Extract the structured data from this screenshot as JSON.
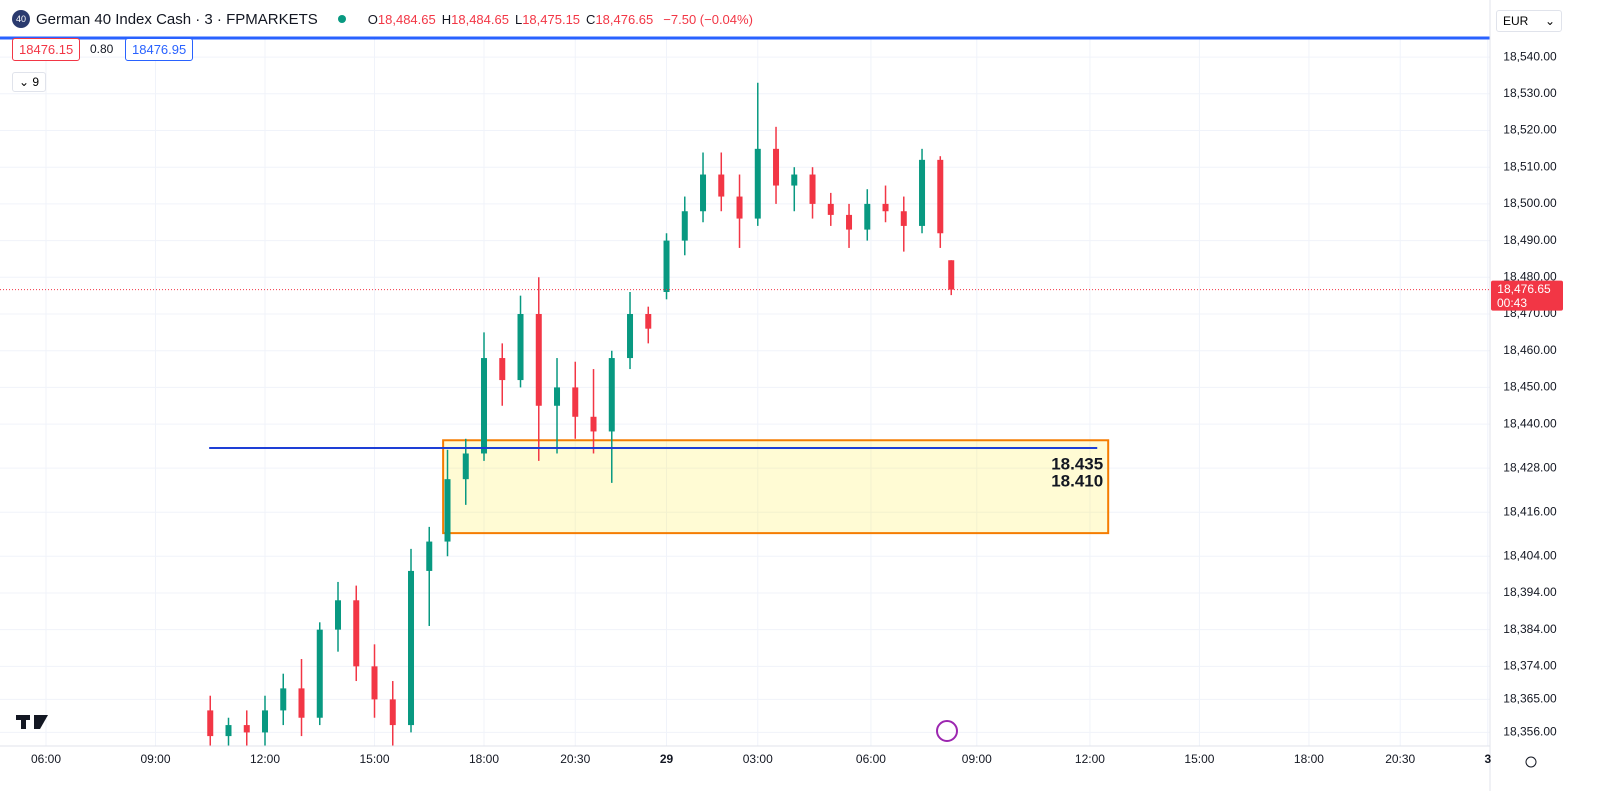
{
  "header": {
    "symbol_badge": "40",
    "symbol": "German 40 Index Cash · 3 · FPMARKETS",
    "ohlc": [
      {
        "key": "O",
        "value": "18,484.65"
      },
      {
        "key": "H",
        "value": "18,484.65"
      },
      {
        "key": "L",
        "value": "18,475.15"
      },
      {
        "key": "C",
        "value": "18,476.65"
      }
    ],
    "change": "−7.50 (−0.04%)",
    "bid": "18476.15",
    "spread": "0.80",
    "ask": "18476.95",
    "indicators_count": "9",
    "currency": "EUR"
  },
  "chart_data": {
    "type": "candlestick",
    "x": [
      4.5,
      5.0,
      5.5,
      6.0,
      6.5,
      7.0,
      7.5,
      8.0,
      8.5,
      9.0,
      9.5,
      10.0,
      10.5,
      11.0,
      11.5,
      12.0,
      12.5,
      13.0,
      13.5,
      14.0,
      14.5,
      15.0,
      15.5,
      16.0,
      16.5,
      17.0,
      17.5,
      18.0,
      18.5,
      19.0,
      19.5,
      20.0,
      20.5,
      21.0,
      21.5,
      22.0,
      22.5,
      23.0,
      23.5,
      24.0,
      24.5,
      24.8
    ],
    "open": [
      18362,
      18355,
      18358,
      18356,
      18362,
      18368,
      18360,
      18384,
      18392,
      18374,
      18365,
      18358,
      18400,
      18408,
      18425,
      18432,
      18458,
      18452,
      18470,
      18445,
      18450,
      18442,
      18438,
      18458,
      18470,
      18476,
      18490,
      18498,
      18508,
      18502,
      18496,
      18515,
      18505,
      18508,
      18500,
      18497,
      18493,
      18500,
      18498,
      18494,
      18512,
      18484.65
    ],
    "high": [
      18366,
      18360,
      18362,
      18366,
      18372,
      18376,
      18386,
      18397,
      18396,
      18380,
      18370,
      18406,
      18412,
      18433,
      18436,
      18465,
      18462,
      18475,
      18480,
      18458,
      18457,
      18455,
      18460,
      18476,
      18472,
      18492,
      18502,
      18514,
      18514,
      18508,
      18533,
      18521,
      18510,
      18510,
      18503,
      18500,
      18504,
      18505,
      18502,
      18515,
      18513,
      18484.65
    ],
    "low": [
      18350,
      18350,
      18352,
      18352,
      18358,
      18355,
      18358,
      18378,
      18370,
      18360,
      18350,
      18356,
      18385,
      18404,
      18418,
      18430,
      18445,
      18450,
      18430,
      18432,
      18436,
      18432,
      18424,
      18455,
      18462,
      18474,
      18486,
      18495,
      18498,
      18488,
      18494,
      18500,
      18498,
      18496,
      18494,
      18488,
      18490,
      18495,
      18487,
      18492,
      18488,
      18475.15
    ],
    "close": [
      18355,
      18358,
      18356,
      18362,
      18368,
      18360,
      18384,
      18392,
      18374,
      18365,
      18358,
      18400,
      18408,
      18425,
      18432,
      18458,
      18452,
      18470,
      18445,
      18450,
      18442,
      18438,
      18458,
      18470,
      18466,
      18490,
      18498,
      18508,
      18502,
      18496,
      18515,
      18505,
      18508,
      18500,
      18497,
      18493,
      18500,
      18498,
      18494,
      18512,
      18492,
      18476.65
    ],
    "up_color": "#089981",
    "down_color": "#f23645",
    "xlim": [
      -1.26,
      39.56
    ],
    "xticks": [
      {
        "value": 0,
        "label": "06:00"
      },
      {
        "value": 3,
        "label": "09:00"
      },
      {
        "value": 6,
        "label": "12:00"
      },
      {
        "value": 9,
        "label": "15:00"
      },
      {
        "value": 12,
        "label": "18:00"
      },
      {
        "value": 14.5,
        "label": "20:30"
      },
      {
        "value": 17,
        "label": "29"
      },
      {
        "value": 19.5,
        "label": "03:00"
      },
      {
        "value": 22.6,
        "label": "06:00"
      },
      {
        "value": 25.5,
        "label": "09:00"
      },
      {
        "value": 28.6,
        "label": "12:00"
      },
      {
        "value": 31.6,
        "label": "15:00"
      },
      {
        "value": 34.6,
        "label": "18:00"
      },
      {
        "value": 37.1,
        "label": "20:30"
      },
      {
        "value": 39.5,
        "label": "3"
      }
    ],
    "ylim": [
      18352.3,
      18545.2
    ],
    "yticks": [
      {
        "value": 18540,
        "label": "18,540.00"
      },
      {
        "value": 18530,
        "label": "18,530.00"
      },
      {
        "value": 18520,
        "label": "18,520.00"
      },
      {
        "value": 18510,
        "label": "18,510.00"
      },
      {
        "value": 18500,
        "label": "18,500.00"
      },
      {
        "value": 18490,
        "label": "18,490.00"
      },
      {
        "value": 18480,
        "label": "18,480.00"
      },
      {
        "value": 18470,
        "label": "18,470.00"
      },
      {
        "value": 18460,
        "label": "18,460.00"
      },
      {
        "value": 18450,
        "label": "18,450.00"
      },
      {
        "value": 18440,
        "label": "18,440.00"
      },
      {
        "value": 18428,
        "label": "18,428.00"
      },
      {
        "value": 18416,
        "label": "18,416.00"
      },
      {
        "value": 18404,
        "label": "18,404.00"
      },
      {
        "value": 18394,
        "label": "18,394.00"
      },
      {
        "value": 18384,
        "label": "18,384.00"
      },
      {
        "value": 18374,
        "label": "18,374.00"
      },
      {
        "value": 18365,
        "label": "18,365.00"
      },
      {
        "value": 18356,
        "label": "18,356.00"
      }
    ],
    "grid": true,
    "last_price": {
      "value": 18476.65,
      "label": "18,476.65",
      "countdown": "00:43",
      "color": "#f23645"
    },
    "annotations": {
      "zone": {
        "top": 18435.6,
        "bottom": 18410.3,
        "x_start": 10.88,
        "x_end": 29.1,
        "labels": [
          "18.435",
          "18.410"
        ]
      },
      "hline": {
        "value": 18433.5,
        "x_start": 4.47,
        "x_end": 28.8,
        "color": "#1e3fd6"
      }
    }
  }
}
